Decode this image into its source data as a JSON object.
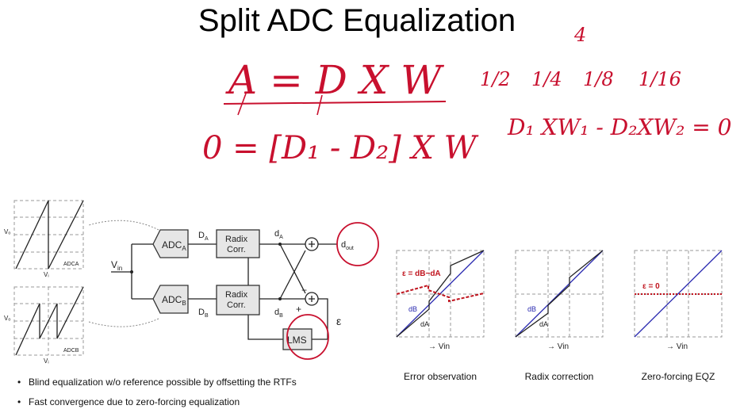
{
  "title": "Split ADC Equalization",
  "handwriting": {
    "eq1": "A = D X W",
    "eq2": "0 = [D₁ - D₂] X W",
    "eq3": "D₁ XW₁ - D₂XW₂ = 0",
    "four": "4",
    "fractions": [
      "1/2",
      "1/4",
      "1/8",
      "1/16"
    ]
  },
  "diagram": {
    "plot_a_label": "ADCA",
    "plot_b_label": "ADCB",
    "axis_y": "Vₒ",
    "axis_x": "Vᵢ",
    "adc_a": "ADC",
    "adc_a_sub": "A",
    "adc_b": "ADC",
    "adc_b_sub": "B",
    "vin": "V",
    "vin_sub": "in",
    "da_upper": "D",
    "da_sub": "A",
    "db_upper": "D",
    "db_sub": "B",
    "radix1": "Radix",
    "radix2": "Corr.",
    "d_a": "d",
    "d_b": "d",
    "dout": "d",
    "dout_sub": "out",
    "minus": "−",
    "plus": "+",
    "epsilon": "ε",
    "lms": "LMS"
  },
  "plots": [
    {
      "caption": "Error observation",
      "eps_label": "ε = dB−dA",
      "da": "dA",
      "db": "dB"
    },
    {
      "caption": "Radix correction",
      "da": "dA",
      "db": "dB"
    },
    {
      "caption": "Zero-forcing EQZ",
      "eps_label": "ε = 0"
    }
  ],
  "vin_axis": "→ Vin",
  "bullets": [
    "Blind equalization w/o reference possible by offsetting the RTFs",
    "Fast convergence due to zero-forcing equalization"
  ],
  "colors": {
    "annotation": "#c8102e",
    "blue": "#2a2ab0",
    "red_dash": "#c0141e"
  }
}
